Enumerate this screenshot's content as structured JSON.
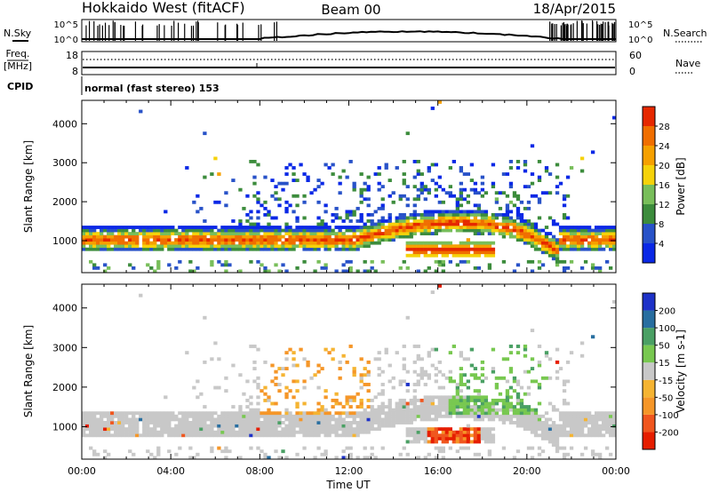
{
  "header": {
    "station": "Hokkaido West (fitACF)",
    "beam": "Beam 00",
    "date": "18/Apr/2015"
  },
  "labels": {
    "nsky": "N.Sky",
    "nsearch": "N.Search",
    "freq_line1": "Freq.",
    "freq_line2": "[MHz]",
    "nave": "Nave",
    "cpid": "CPID",
    "cpid_value": "normal (fast stereo) 153"
  },
  "colors": {
    "power": [
      "#0a28e6",
      "#2852c8",
      "#3c8c3c",
      "#78be5a",
      "#f5d20a",
      "#f5a000",
      "#f06e00",
      "#e62800"
    ],
    "velocity": [
      "#e61e00",
      "#f0561e",
      "#f59628",
      "#f5b432",
      "#c8c8c8",
      "#78c850",
      "#4aa064",
      "#286ea0",
      "#1e32c8"
    ]
  },
  "chart_data": [
    {
      "type": "line",
      "name": "noise-panel",
      "left_axis": {
        "ticks": [
          "10^5",
          "10^0"
        ]
      },
      "right_axis": {
        "ticks": [
          "10^5",
          "10^0"
        ]
      }
    },
    {
      "type": "line",
      "name": "freq-nave-panel",
      "left_axis": {
        "ticks": [
          "18",
          "8"
        ]
      },
      "right_axis": {
        "ticks": [
          "60",
          "0"
        ]
      }
    },
    {
      "type": "heatmap",
      "name": "power",
      "xlabel": "",
      "ylabel": "Slant Range [km]",
      "xlim": [
        0,
        24
      ],
      "ylim": [
        180,
        4600
      ],
      "yticks": [
        "1000",
        "2000",
        "3000",
        "4000"
      ],
      "colorbar": {
        "label": "Power [dB]",
        "ticks": [
          "4",
          "8",
          "12",
          "16",
          "20",
          "24",
          "28"
        ]
      }
    },
    {
      "type": "heatmap",
      "name": "velocity",
      "xlabel": "Time UT",
      "ylabel": "Slant Range [km]",
      "xlim": [
        0,
        24
      ],
      "ylim": [
        180,
        4600
      ],
      "xticks": [
        "00:00",
        "04:00",
        "08:00",
        "12:00",
        "16:00",
        "20:00",
        "00:00"
      ],
      "yticks": [
        "1000",
        "2000",
        "3000",
        "4000"
      ],
      "colorbar": {
        "label": "Velocity [m s-1]",
        "ticks": [
          "200",
          "100",
          "50",
          "15",
          "-15",
          "-50",
          "-100",
          "-200"
        ]
      }
    }
  ]
}
